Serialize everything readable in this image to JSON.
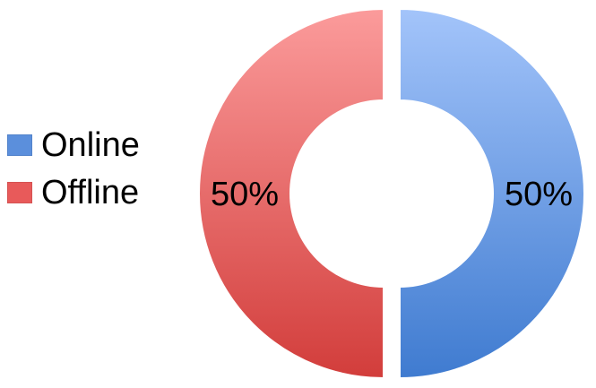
{
  "chart_data": {
    "type": "pie",
    "variant": "donut",
    "categories": [
      "Online",
      "Offline"
    ],
    "values": [
      50,
      50
    ],
    "data_labels": [
      "50%",
      "50%"
    ],
    "colors": [
      "#5b8fdc",
      "#e85a5a"
    ],
    "color_light": [
      "#a3c4fa",
      "#fb9b9b"
    ],
    "color_dark": [
      "#3f7bd0",
      "#d23d3b"
    ],
    "legend": "left",
    "title": ""
  }
}
